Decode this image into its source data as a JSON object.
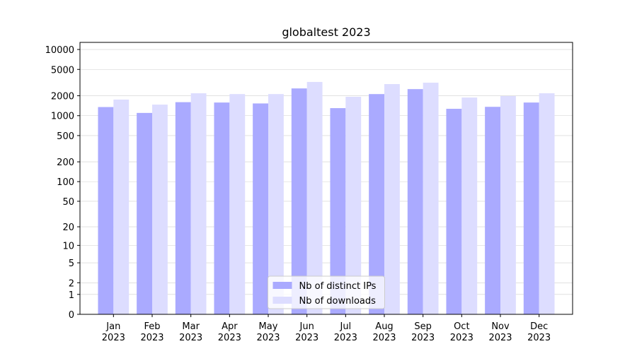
{
  "chart_data": {
    "type": "bar",
    "title": "globaltest 2023",
    "categories": [
      "Jan 2023",
      "Feb 2023",
      "Mar 2023",
      "Apr 2023",
      "May 2023",
      "Jun 2023",
      "Jul 2023",
      "Aug 2023",
      "Sep 2023",
      "Oct 2023",
      "Nov 2023",
      "Dec 2023"
    ],
    "series": [
      {
        "name": "Nb of distinct IPs",
        "color": "#aaaaff",
        "values": [
          1350,
          1100,
          1600,
          1580,
          1530,
          2580,
          1300,
          2120,
          2520,
          1270,
          1360,
          1580
        ]
      },
      {
        "name": "Nb of downloads",
        "color": "#ddddff",
        "values": [
          1750,
          1470,
          2180,
          2120,
          2120,
          3230,
          1930,
          3000,
          3150,
          1880,
          1980,
          2180
        ]
      }
    ],
    "yscale": "log1p",
    "ylim": [
      0,
      12800
    ],
    "yticks": [
      0,
      1,
      2,
      5,
      10,
      20,
      50,
      100,
      200,
      500,
      1000,
      2000,
      5000,
      10000
    ],
    "grid": true,
    "legend": "lower center"
  }
}
